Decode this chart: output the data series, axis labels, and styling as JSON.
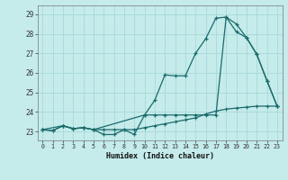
{
  "title": "",
  "xlabel": "Humidex (Indice chaleur)",
  "background_color": "#c5ebeb",
  "grid_color": "#a8d8d8",
  "line_color": "#1a6b6b",
  "xlim": [
    -0.5,
    23.5
  ],
  "ylim": [
    22.55,
    29.45
  ],
  "yticks": [
    23,
    24,
    25,
    26,
    27,
    28,
    29
  ],
  "xticks": [
    0,
    1,
    2,
    3,
    4,
    5,
    6,
    7,
    8,
    9,
    10,
    11,
    12,
    13,
    14,
    15,
    16,
    17,
    18,
    19,
    20,
    21,
    22,
    23
  ],
  "series1_x": [
    0,
    1,
    2,
    3,
    4,
    5,
    6,
    7,
    8,
    9,
    10,
    11,
    12,
    13,
    14,
    15,
    16,
    17,
    18,
    19,
    20,
    21,
    22,
    23
  ],
  "series1_y": [
    23.1,
    23.05,
    23.3,
    23.15,
    23.2,
    23.1,
    22.85,
    22.85,
    23.1,
    22.85,
    23.85,
    24.6,
    25.9,
    25.85,
    25.85,
    27.0,
    27.75,
    28.8,
    28.85,
    28.1,
    27.8,
    26.95,
    25.6,
    24.3
  ],
  "series2_x": [
    0,
    2,
    3,
    4,
    5,
    10,
    11,
    12,
    13,
    14,
    15,
    16,
    17,
    18,
    19,
    20,
    21,
    22,
    23
  ],
  "series2_y": [
    23.1,
    23.3,
    23.15,
    23.2,
    23.1,
    23.85,
    23.85,
    23.85,
    23.85,
    23.85,
    23.85,
    23.85,
    23.85,
    28.85,
    28.5,
    27.8,
    26.95,
    25.6,
    24.3
  ],
  "series3_x": [
    0,
    1,
    2,
    3,
    4,
    5,
    6,
    7,
    8,
    9,
    10,
    11,
    12,
    13,
    14,
    15,
    16,
    17,
    18,
    19,
    20,
    21,
    22,
    23
  ],
  "series3_y": [
    23.1,
    23.05,
    23.3,
    23.15,
    23.2,
    23.1,
    23.1,
    23.1,
    23.1,
    23.1,
    23.2,
    23.3,
    23.4,
    23.5,
    23.6,
    23.7,
    23.9,
    24.05,
    24.15,
    24.2,
    24.25,
    24.3,
    24.3,
    24.3
  ]
}
